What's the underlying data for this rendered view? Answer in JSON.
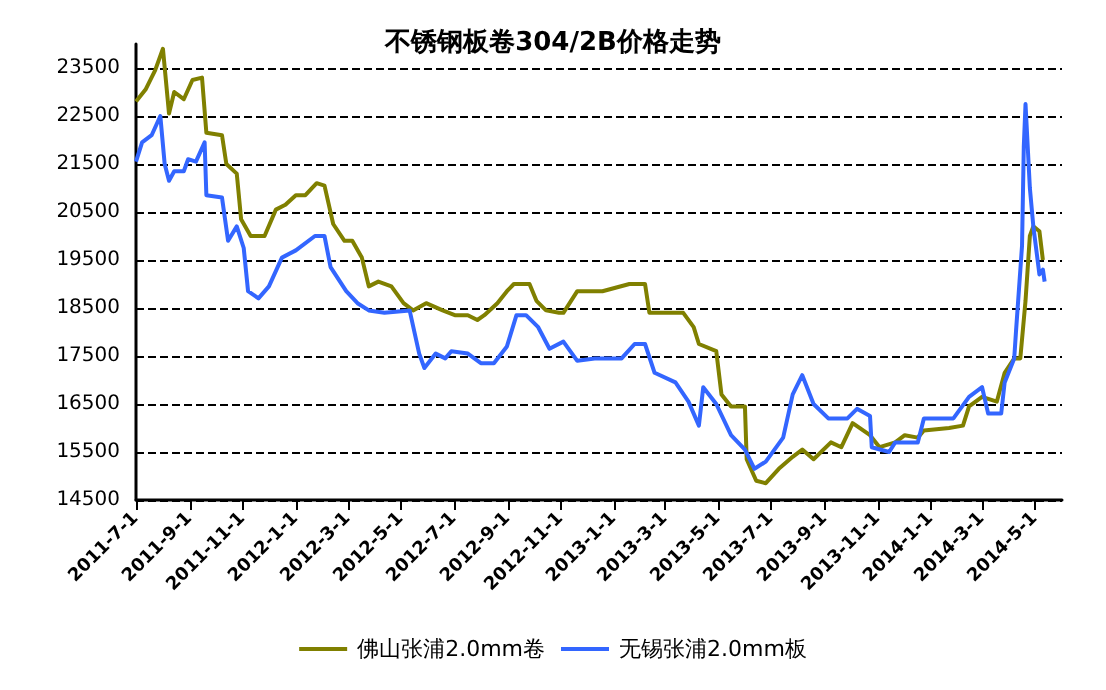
{
  "chart_data": {
    "type": "line",
    "title": "不锈钢板卷304/2B价格走势",
    "xlim": [
      "2011-07-01",
      "2014-06-01"
    ],
    "xticks": [
      {
        "value": "2011-07-01",
        "label": "2011-7-1"
      },
      {
        "value": "2011-09-01",
        "label": "2011-9-1"
      },
      {
        "value": "2011-11-01",
        "label": "2011-11-1"
      },
      {
        "value": "2012-01-01",
        "label": "2012-1-1"
      },
      {
        "value": "2012-03-01",
        "label": "2012-3-1"
      },
      {
        "value": "2012-05-01",
        "label": "2012-5-1"
      },
      {
        "value": "2012-07-01",
        "label": "2012-7-1"
      },
      {
        "value": "2012-09-01",
        "label": "2012-9-1"
      },
      {
        "value": "2012-11-01",
        "label": "2012-11-1"
      },
      {
        "value": "2013-01-01",
        "label": "2013-1-1"
      },
      {
        "value": "2013-03-01",
        "label": "2013-3-1"
      },
      {
        "value": "2013-05-01",
        "label": "2013-5-1"
      },
      {
        "value": "2013-07-01",
        "label": "2013-7-1"
      },
      {
        "value": "2013-09-01",
        "label": "2013-9-1"
      },
      {
        "value": "2013-11-01",
        "label": "2013-11-1"
      },
      {
        "value": "2014-01-01",
        "label": "2014-1-1"
      },
      {
        "value": "2014-03-01",
        "label": "2014-3-1"
      },
      {
        "value": "2014-05-01",
        "label": "2014-5-1"
      }
    ],
    "ylim": [
      14500,
      24000
    ],
    "yticks": [
      14500,
      15500,
      16500,
      17500,
      18500,
      19500,
      20500,
      21500,
      22500,
      23500
    ],
    "grid": "y",
    "legend": "bottom",
    "marker": "none",
    "line_style": "solid",
    "series": [
      {
        "name": "佛山张浦2.0mm卷",
        "color": "#808000",
        "x": [
          "2011-07-01",
          "2011-07-12",
          "2011-07-23",
          "2011-08-01",
          "2011-08-08",
          "2011-08-14",
          "2011-08-25",
          "2011-09-04",
          "2011-09-15",
          "2011-09-20",
          "2011-10-08",
          "2011-10-13",
          "2011-10-25",
          "2011-10-30",
          "2011-11-10",
          "2011-11-26",
          "2011-12-09",
          "2011-12-20",
          "2012-01-01",
          "2012-01-12",
          "2012-01-25",
          "2012-02-03",
          "2012-02-13",
          "2012-02-26",
          "2012-03-06",
          "2012-03-17",
          "2012-03-25",
          "2012-04-05",
          "2012-04-20",
          "2012-05-04",
          "2012-05-15",
          "2012-05-30",
          "2012-06-18",
          "2012-07-02",
          "2012-07-17",
          "2012-07-28",
          "2012-08-05",
          "2012-08-20",
          "2012-08-31",
          "2012-09-08",
          "2012-09-26",
          "2012-10-04",
          "2012-10-15",
          "2012-10-30",
          "2012-11-04",
          "2012-11-20",
          "2012-12-19",
          "2013-01-19",
          "2013-02-06",
          "2013-02-11",
          "2013-03-05",
          "2013-03-22",
          "2013-04-03",
          "2013-04-09",
          "2013-04-29",
          "2013-05-05",
          "2013-05-16",
          "2013-06-01",
          "2013-06-03",
          "2013-06-14",
          "2013-06-25",
          "2013-07-10",
          "2013-07-26",
          "2013-08-06",
          "2013-08-19",
          "2013-09-08",
          "2013-09-20",
          "2013-10-03",
          "2013-10-23",
          "2013-11-03",
          "2013-11-21",
          "2013-12-02",
          "2013-12-17",
          "2013-12-24",
          "2014-01-22",
          "2014-02-07",
          "2014-02-14",
          "2014-03-01",
          "2014-03-18",
          "2014-03-27",
          "2014-04-07",
          "2014-04-14",
          "2014-04-20",
          "2014-04-25",
          "2014-04-29",
          "2014-05-06",
          "2014-05-10"
        ],
        "values": [
          22800,
          23050,
          23450,
          23900,
          22550,
          23000,
          22850,
          23250,
          23300,
          22150,
          22100,
          21500,
          21300,
          20350,
          20000,
          20000,
          20550,
          20650,
          20850,
          20850,
          21100,
          21050,
          20250,
          19900,
          19900,
          19550,
          18950,
          19050,
          18950,
          18600,
          18450,
          18600,
          18450,
          18350,
          18350,
          18250,
          18350,
          18600,
          18850,
          19000,
          19000,
          18650,
          18450,
          18400,
          18400,
          18850,
          18850,
          19000,
          19000,
          18400,
          18400,
          18400,
          18100,
          17750,
          17600,
          16700,
          16450,
          16450,
          15350,
          14900,
          14850,
          15150,
          15400,
          15550,
          15350,
          15700,
          15600,
          16100,
          15850,
          15600,
          15700,
          15850,
          15800,
          15950,
          16000,
          16050,
          16450,
          16650,
          16550,
          17150,
          17450,
          17450,
          18650,
          20000,
          20200,
          20100,
          19500
        ]
      },
      {
        "name": "无锡张浦2.0mm板",
        "color": "#3366ff",
        "x": [
          "2011-07-01",
          "2011-07-08",
          "2011-07-19",
          "2011-07-29",
          "2011-08-03",
          "2011-08-08",
          "2011-08-14",
          "2011-08-25",
          "2011-08-30",
          "2011-09-08",
          "2011-09-18",
          "2011-09-20",
          "2011-10-08",
          "2011-10-15",
          "2011-10-25",
          "2011-11-02",
          "2011-11-07",
          "2011-11-19",
          "2011-12-01",
          "2011-12-16",
          "2012-01-01",
          "2012-01-23",
          "2012-02-03",
          "2012-02-10",
          "2012-02-28",
          "2012-03-12",
          "2012-03-25",
          "2012-04-12",
          "2012-05-11",
          "2012-05-22",
          "2012-05-28",
          "2012-06-10",
          "2012-06-21",
          "2012-06-28",
          "2012-07-17",
          "2012-08-01",
          "2012-08-16",
          "2012-08-31",
          "2012-09-11",
          "2012-09-22",
          "2012-10-06",
          "2012-10-19",
          "2012-11-04",
          "2012-11-20",
          "2012-12-10",
          "2013-01-10",
          "2013-01-25",
          "2013-02-06",
          "2013-02-17",
          "2013-03-13",
          "2013-03-28",
          "2013-04-09",
          "2013-04-14",
          "2013-04-29",
          "2013-05-16",
          "2013-06-01",
          "2013-06-12",
          "2013-06-25",
          "2013-07-15",
          "2013-07-26",
          "2013-08-06",
          "2013-08-19",
          "2013-09-05",
          "2013-09-27",
          "2013-10-08",
          "2013-10-23",
          "2013-10-25",
          "2013-11-14",
          "2013-11-21",
          "2013-12-17",
          "2013-12-24",
          "2014-01-27",
          "2014-02-14",
          "2014-03-01",
          "2014-03-08",
          "2014-03-23",
          "2014-03-27",
          "2014-04-07",
          "2014-04-09",
          "2014-04-16",
          "2014-04-18",
          "2014-04-20",
          "2014-04-25",
          "2014-04-29",
          "2014-05-06",
          "2014-05-10",
          "2014-05-12"
        ],
        "values": [
          21550,
          21950,
          22100,
          22500,
          21500,
          21150,
          21350,
          21350,
          21600,
          21550,
          21950,
          20850,
          20800,
          19900,
          20200,
          19750,
          18850,
          18700,
          18950,
          19550,
          19700,
          20000,
          20000,
          19350,
          18850,
          18600,
          18450,
          18400,
          18450,
          17550,
          17250,
          17550,
          17450,
          17600,
          17550,
          17350,
          17350,
          17700,
          18350,
          18350,
          18100,
          17650,
          17800,
          17400,
          17450,
          17450,
          17750,
          17750,
          17150,
          16950,
          16550,
          16050,
          16850,
          16500,
          15850,
          15550,
          15150,
          15300,
          15800,
          16700,
          17100,
          16500,
          16200,
          16200,
          16400,
          16250,
          15600,
          15500,
          15700,
          15700,
          16200,
          16200,
          16650,
          16850,
          16300,
          16300,
          16950,
          17450,
          18000,
          19800,
          21850,
          22750,
          21000,
          20200,
          19200,
          19300,
          19050
        ]
      }
    ]
  }
}
